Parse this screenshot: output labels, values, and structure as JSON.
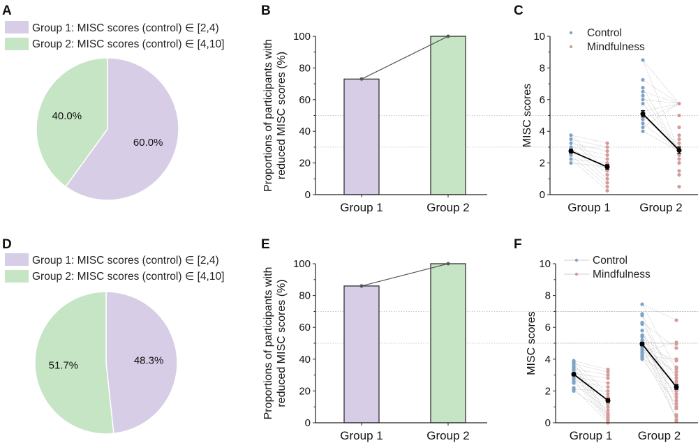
{
  "figure": {
    "panels": [
      "A",
      "B",
      "C",
      "D",
      "E",
      "F"
    ]
  },
  "colors": {
    "group1": "#d7cde6",
    "group2": "#c5e5c5",
    "control": "#7fa3c8",
    "mindfulness": "#d49a98",
    "mean": "#000000",
    "connector": "#555555",
    "reference_line": "#bbbbbb"
  },
  "chart_data": [
    {
      "panel": "A",
      "type": "pie",
      "legend": [
        "Group 1: MISC scores (control) ∈ [2,4)",
        "Group 2: MISC scores (control) ∈ [4,10]"
      ],
      "legend_placement": "top-left",
      "slices": [
        {
          "name": "Group 1",
          "value": 60.0,
          "label": "60.0%"
        },
        {
          "name": "Group 2",
          "value": 40.0,
          "label": "40.0%"
        }
      ]
    },
    {
      "panel": "B",
      "type": "bar",
      "categories": [
        "Group 1",
        "Group 2"
      ],
      "values": [
        73,
        100
      ],
      "ylabel": "Proportions of participants with reduced MISC scores (%)",
      "ylabel_lines": [
        "Proportions of participants with",
        "reduced MISC scores (%)"
      ],
      "xlabel": "",
      "ylim": [
        0,
        100
      ],
      "yticks": [
        0,
        20,
        40,
        60,
        80,
        100
      ],
      "reference_lines": [
        50,
        30
      ],
      "connector_line": true
    },
    {
      "panel": "C",
      "type": "scatter",
      "title": "",
      "categories": [
        "Group 1",
        "Group 2"
      ],
      "ylabel": "MISC scores",
      "ylim": [
        0,
        10
      ],
      "yticks": [
        0,
        2,
        4,
        6,
        8,
        10
      ],
      "reference_lines": [
        5,
        3
      ],
      "legend": [
        "Control",
        "Mindfulness"
      ],
      "legend_placement": "top-left",
      "legend_has_lines": false,
      "series": [
        {
          "group": "Group 1",
          "name": "Control",
          "values": [
            3.75,
            3.5,
            3.25,
            3.0,
            2.75,
            2.5,
            2.25,
            2.0
          ],
          "mean": 2.75,
          "sem": 0.12
        },
        {
          "group": "Group 1",
          "name": "Mindfulness",
          "values": [
            3.25,
            3.0,
            2.75,
            2.5,
            2.25,
            2.0,
            1.75,
            1.5,
            1.25,
            1.0,
            0.75,
            0.5,
            0.25
          ],
          "mean": 1.75,
          "sem": 0.15
        },
        {
          "group": "Group 2",
          "name": "Control",
          "values": [
            8.5,
            7.25,
            6.75,
            6.5,
            6.25,
            6.0,
            5.75,
            5.25,
            5.0,
            4.75,
            4.5,
            4.25,
            4.0
          ],
          "mean": 5.1,
          "sem": 0.2
        },
        {
          "group": "Group 2",
          "name": "Mindfulness",
          "values": [
            5.75,
            5.0,
            4.25,
            3.75,
            3.5,
            3.25,
            3.0,
            2.75,
            2.5,
            2.25,
            2.0,
            1.5,
            1.25,
            0.5
          ],
          "mean": 2.8,
          "sem": 0.2
        }
      ]
    },
    {
      "panel": "D",
      "type": "pie",
      "legend": [
        "Group 1: MISC scores (control) ∈ [2,4)",
        "Group 2: MISC scores (control) ∈ [4,10]"
      ],
      "legend_placement": "top-left",
      "slices": [
        {
          "name": "Group 1",
          "value": 48.3,
          "label": "48.3%"
        },
        {
          "name": "Group 2",
          "value": 51.7,
          "label": "51.7%"
        }
      ]
    },
    {
      "panel": "E",
      "type": "bar",
      "categories": [
        "Group 1",
        "Group 2"
      ],
      "values": [
        86,
        100
      ],
      "ylabel": "Proportions of participants with reduced MISC scores (%)",
      "ylabel_lines": [
        "Proportions of participants with",
        "reduced MISC scores (%)"
      ],
      "xlabel": "",
      "ylim": [
        0,
        100
      ],
      "yticks": [
        0,
        20,
        40,
        60,
        80,
        100
      ],
      "reference_lines": [
        70,
        50
      ],
      "connector_line": true
    },
    {
      "panel": "F",
      "type": "scatter",
      "title": "",
      "categories": [
        "Group 1",
        "Group 2"
      ],
      "ylabel": "MISC scores",
      "ylim": [
        0,
        10
      ],
      "yticks": [
        0,
        2,
        4,
        6,
        8,
        10
      ],
      "reference_lines": [
        7,
        5
      ],
      "legend": [
        "Control",
        "Mindfulness"
      ],
      "legend_placement": "top-left",
      "legend_has_lines": true,
      "series": [
        {
          "group": "Group 1",
          "name": "Control",
          "values": [
            3.9,
            3.8,
            3.7,
            3.6,
            3.5,
            3.4,
            3.3,
            3.2,
            3.1,
            3.0,
            2.9,
            2.8,
            2.7,
            2.6,
            2.5,
            2.2,
            2.1,
            2.0
          ],
          "mean": 3.05,
          "sem": 0.08
        },
        {
          "group": "Group 1",
          "name": "Mindfulness",
          "values": [
            3.35,
            3.2,
            3.0,
            2.8,
            2.5,
            2.25,
            2.0,
            1.8,
            1.6,
            1.4,
            1.2,
            1.0,
            0.8,
            0.6,
            0.5,
            0.4,
            0.3,
            0.2,
            0.1,
            0.0
          ],
          "mean": 1.4,
          "sem": 0.12
        },
        {
          "group": "Group 2",
          "name": "Control",
          "values": [
            7.45,
            6.85,
            6.75,
            6.3,
            6.2,
            5.8,
            5.5,
            5.4,
            5.2,
            5.1,
            5.0,
            4.9,
            4.8,
            4.7,
            4.6,
            4.5,
            4.4,
            4.3,
            4.2,
            4.1,
            4.0
          ],
          "mean": 4.95,
          "sem": 0.1
        },
        {
          "group": "Group 2",
          "name": "Mindfulness",
          "values": [
            6.45,
            5.05,
            4.95,
            4.7,
            4.0,
            3.9,
            3.5,
            3.4,
            3.2,
            3.0,
            2.8,
            2.6,
            2.4,
            2.2,
            2.0,
            1.8,
            1.6,
            1.4,
            1.2,
            1.0,
            0.9,
            0.5,
            0.4,
            0.2,
            0.1
          ],
          "mean": 2.25,
          "sem": 0.15
        }
      ]
    }
  ]
}
